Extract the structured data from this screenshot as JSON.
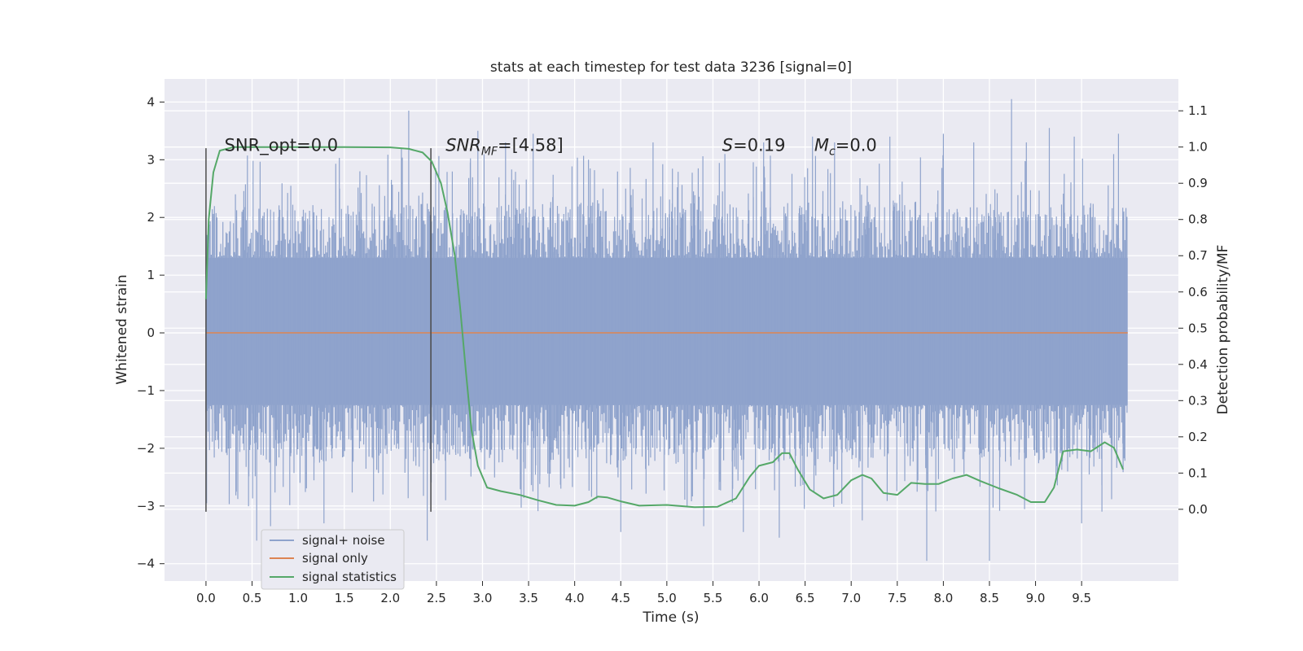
{
  "chart_data": {
    "type": "line",
    "title": "stats at each timestep for test data 3236 [signal=0]",
    "xlabel": "Time (s)",
    "ylabel": "Whitened strain",
    "y2label": "Detection probability/MF",
    "xlim": [
      -0.45,
      10.55
    ],
    "ylim": [
      -4.3,
      4.4
    ],
    "y2lim": [
      -0.198,
      1.188
    ],
    "xticks": [
      "0.0",
      "0.5",
      "1.0",
      "1.5",
      "2.0",
      "2.5",
      "3.0",
      "3.5",
      "4.0",
      "4.5",
      "5.0",
      "5.5",
      "6.0",
      "6.5",
      "7.0",
      "7.5",
      "8.0",
      "8.5",
      "9.0",
      "9.5"
    ],
    "yticks": [
      -4,
      -3,
      -2,
      -1,
      0,
      1,
      2,
      3,
      4
    ],
    "y2ticks": [
      "0.0",
      "0.1",
      "0.2",
      "0.3",
      "0.4",
      "0.5",
      "0.6",
      "0.7",
      "0.8",
      "0.9",
      "1.0",
      "1.1"
    ],
    "grid": true,
    "legend_position": "lower-left",
    "annotations": [
      {
        "text": "SNR_opt=0.0",
        "x": 0.2,
        "y": 3.25
      },
      {
        "main": "SNR",
        "sub": "MF",
        "rest": "=[4.58]",
        "x": 2.6,
        "y": 3.25
      },
      {
        "main": "S",
        "sub": "",
        "rest": "=0.19",
        "x": 5.6,
        "y": 3.25
      },
      {
        "main": "M",
        "sub": "c",
        "rest": "=0.0",
        "x": 6.6,
        "y": 3.25
      }
    ],
    "vlines": [
      {
        "x": 0.0,
        "ymin": -3.1,
        "ymax": 3.2
      },
      {
        "x": 2.44,
        "ymin": -3.1,
        "ymax": 3.2
      }
    ],
    "series": [
      {
        "name": "signal+ noise",
        "color": "#8fa3cc",
        "envelope": {
          "t_start": 0.0,
          "t_end": 10.0,
          "core": [
            -1.25,
            1.3
          ],
          "typical": [
            -2.2,
            2.2
          ],
          "extremes": [
            {
              "x": 0.12,
              "y": 2.0
            },
            {
              "x": 0.32,
              "y": 2.4
            },
            {
              "x": 0.55,
              "y": -3.6
            },
            {
              "x": 0.7,
              "y": -3.35
            },
            {
              "x": 0.92,
              "y": 2.55
            },
            {
              "x": 1.02,
              "y": -2.6
            },
            {
              "x": 1.28,
              "y": -3.3
            },
            {
              "x": 1.45,
              "y": 2.5
            },
            {
              "x": 1.67,
              "y": 2.8
            },
            {
              "x": 1.92,
              "y": -2.8
            },
            {
              "x": 2.12,
              "y": 3.2
            },
            {
              "x": 2.2,
              "y": 3.85
            },
            {
              "x": 2.4,
              "y": -3.6
            },
            {
              "x": 2.6,
              "y": -2.9
            },
            {
              "x": 2.95,
              "y": 3.5
            },
            {
              "x": 3.25,
              "y": 3.3
            },
            {
              "x": 3.55,
              "y": 3.45
            },
            {
              "x": 3.85,
              "y": -2.7
            },
            {
              "x": 4.15,
              "y": 3.0
            },
            {
              "x": 4.5,
              "y": -3.45
            },
            {
              "x": 4.85,
              "y": 3.3
            },
            {
              "x": 5.22,
              "y": -3.0
            },
            {
              "x": 5.4,
              "y": -3.35
            },
            {
              "x": 5.63,
              "y": 3.1
            },
            {
              "x": 5.83,
              "y": -3.45
            },
            {
              "x": 6.05,
              "y": 3.3
            },
            {
              "x": 6.22,
              "y": -3.55
            },
            {
              "x": 6.58,
              "y": 3.4
            },
            {
              "x": 6.82,
              "y": 3.3
            },
            {
              "x": 7.12,
              "y": -3.25
            },
            {
              "x": 7.42,
              "y": 3.4
            },
            {
              "x": 7.82,
              "y": -3.95
            },
            {
              "x": 8.0,
              "y": 3.45
            },
            {
              "x": 8.33,
              "y": 3.3
            },
            {
              "x": 8.5,
              "y": -3.95
            },
            {
              "x": 8.74,
              "y": 4.05
            },
            {
              "x": 8.9,
              "y": 3.3
            },
            {
              "x": 9.15,
              "y": 3.55
            },
            {
              "x": 9.42,
              "y": 3.4
            },
            {
              "x": 9.5,
              "y": -3.3
            },
            {
              "x": 9.72,
              "y": -3.0
            },
            {
              "x": 9.9,
              "y": 3.45
            }
          ]
        }
      },
      {
        "name": "signal only",
        "color": "#dd8452",
        "x": [
          0.0,
          10.0
        ],
        "y": [
          0.0,
          0.0
        ]
      },
      {
        "name": "signal statistics",
        "color": "#55a868",
        "axis": "right",
        "x": [
          0.0,
          0.03,
          0.08,
          0.15,
          0.3,
          0.6,
          1.0,
          1.5,
          2.0,
          2.2,
          2.35,
          2.45,
          2.55,
          2.62,
          2.7,
          2.76,
          2.82,
          2.88,
          2.95,
          3.05,
          3.2,
          3.4,
          3.6,
          3.8,
          4.0,
          4.15,
          4.25,
          4.35,
          4.5,
          4.7,
          5.0,
          5.3,
          5.55,
          5.75,
          5.9,
          6.0,
          6.15,
          6.25,
          6.33,
          6.42,
          6.55,
          6.7,
          6.85,
          7.0,
          7.12,
          7.22,
          7.35,
          7.5,
          7.65,
          7.8,
          7.95,
          8.1,
          8.25,
          8.4,
          8.6,
          8.8,
          8.95,
          9.1,
          9.2,
          9.3,
          9.45,
          9.6,
          9.75,
          9.85,
          9.95
        ],
        "y": [
          0.58,
          0.8,
          0.93,
          0.99,
          1.0,
          1.0,
          1.0,
          1.0,
          0.999,
          0.995,
          0.985,
          0.96,
          0.9,
          0.82,
          0.7,
          0.55,
          0.38,
          0.22,
          0.12,
          0.06,
          0.05,
          0.04,
          0.025,
          0.012,
          0.01,
          0.02,
          0.035,
          0.033,
          0.022,
          0.01,
          0.012,
          0.006,
          0.007,
          0.03,
          0.09,
          0.12,
          0.13,
          0.155,
          0.155,
          0.11,
          0.055,
          0.03,
          0.04,
          0.08,
          0.095,
          0.085,
          0.045,
          0.04,
          0.073,
          0.07,
          0.07,
          0.085,
          0.095,
          0.078,
          0.058,
          0.04,
          0.02,
          0.02,
          0.06,
          0.16,
          0.165,
          0.16,
          0.185,
          0.17,
          0.11
        ]
      }
    ]
  }
}
